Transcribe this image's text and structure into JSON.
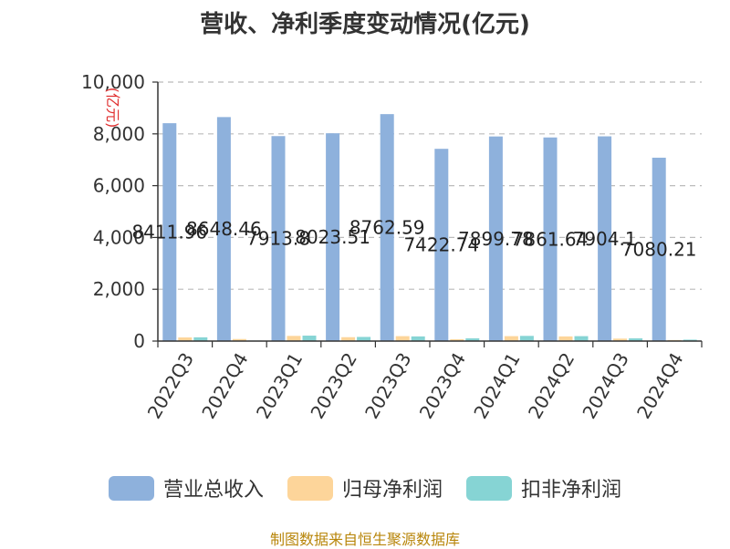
{
  "title": "营收、净利季度变动情况(亿元)",
  "source": "制图数据来自恒生聚源数据库",
  "chart_data": {
    "type": "bar",
    "title": "营收、净利季度变动情况(亿元)",
    "ylabel": "(亿元)",
    "xlabel": "",
    "ylim": [
      0,
      10000
    ],
    "yticks": [
      0,
      2000,
      4000,
      6000,
      8000,
      10000
    ],
    "ytick_labels": [
      "0",
      "2,000",
      "4,000",
      "6,000",
      "8,000",
      "10,000"
    ],
    "grid": "dashed horizontal",
    "legend_position": "bottom",
    "categories": [
      "2022Q3",
      "2022Q4",
      "2023Q1",
      "2023Q2",
      "2023Q3",
      "2023Q4",
      "2024Q1",
      "2024Q2",
      "2024Q3",
      "2024Q4"
    ],
    "series": [
      {
        "name": "营业总收入",
        "color": "#8eb1dc",
        "values": [
          8411.96,
          8648.46,
          7913.8,
          8023.51,
          8762.59,
          7422.74,
          7899.78,
          7861.64,
          7904.1,
          7080.21
        ],
        "labels": [
          "8411.96",
          "8648.46",
          "7913.8",
          "8023.51",
          "8762.59",
          "7422.74",
          "7899.78",
          "7861.64",
          "7904.1",
          "7080.21"
        ]
      },
      {
        "name": "归母净利润",
        "color": "#fdd59a",
        "values": [
          140,
          80,
          200,
          150,
          190,
          70,
          190,
          180,
          95,
          40
        ]
      },
      {
        "name": "扣非净利润",
        "color": "#86d4d4",
        "values": [
          145,
          20,
          210,
          160,
          180,
          105,
          200,
          190,
          105,
          55
        ]
      }
    ]
  }
}
